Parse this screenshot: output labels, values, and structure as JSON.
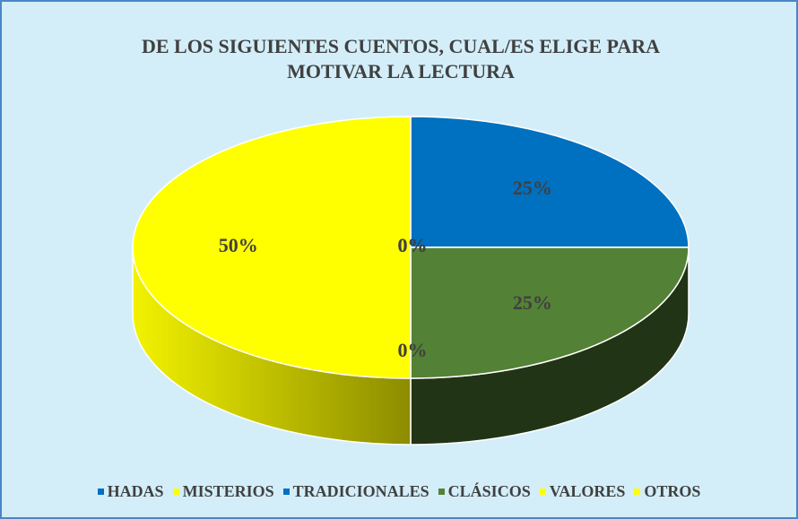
{
  "chart_data": {
    "type": "pie",
    "title": "DE LOS SIGUIENTES CUENTOS, CUAL/ES ELIGE PARA MOTIVAR LA LECTURA",
    "categories": [
      "HADAS",
      "MISTERIOS",
      "TRADICIONALES",
      "CLÁSICOS",
      "VALORES",
      "OTROS"
    ],
    "values": [
      25,
      0,
      0,
      25,
      0,
      50
    ],
    "value_labels": [
      "25%",
      "0%",
      "0%",
      "25%",
      "0%",
      "50%"
    ],
    "colors": [
      "#0070c0",
      "#ffff00",
      "#0070c0",
      "#538135",
      "#ffff00",
      "#ffff00"
    ],
    "legend": "bottom"
  }
}
